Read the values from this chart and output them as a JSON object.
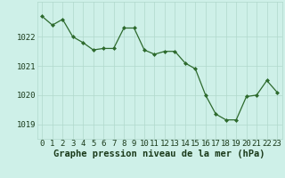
{
  "x": [
    0,
    1,
    2,
    3,
    4,
    5,
    6,
    7,
    8,
    9,
    10,
    11,
    12,
    13,
    14,
    15,
    16,
    17,
    18,
    19,
    20,
    21,
    22,
    23
  ],
  "y": [
    1022.7,
    1022.4,
    1022.6,
    1022.0,
    1021.8,
    1021.55,
    1021.6,
    1021.6,
    1022.3,
    1022.3,
    1021.55,
    1021.4,
    1021.5,
    1021.5,
    1021.1,
    1020.9,
    1020.0,
    1019.35,
    1019.15,
    1019.15,
    1019.95,
    1020.0,
    1020.5,
    1020.1
  ],
  "line_color": "#2d6a2d",
  "marker_color": "#2d6a2d",
  "bg_color": "#cef0e8",
  "grid_color": "#b0d8cc",
  "ylabel_ticks": [
    1019,
    1020,
    1021,
    1022
  ],
  "xlabel": "Graphe pression niveau de la mer (hPa)",
  "xlim": [
    -0.5,
    23.5
  ],
  "ylim": [
    1018.5,
    1023.2
  ],
  "xlabel_fontsize": 7.5,
  "tick_fontsize": 6.5
}
